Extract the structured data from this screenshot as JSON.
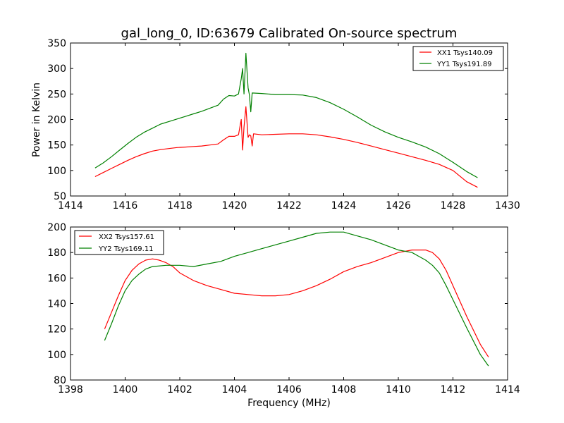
{
  "figure": {
    "title": "gal_long_0, ID:63679 Calibrated On-source spectrum",
    "xlabel": "Frequency (MHz)"
  },
  "chart_data": [
    {
      "type": "line",
      "ylabel": "Power in Kelvin",
      "xlim": [
        1414,
        1430
      ],
      "ylim": [
        50,
        350
      ],
      "xticks": [
        1414,
        1416,
        1418,
        1420,
        1422,
        1424,
        1426,
        1428,
        1430
      ],
      "yticks": [
        50,
        100,
        150,
        200,
        250,
        300,
        350
      ],
      "legend_position": "top-right",
      "series": [
        {
          "name": "XX1 Tsys140.09",
          "color": "#ff0000",
          "points": [
            [
              1414.9,
              88
            ],
            [
              1415.2,
              96
            ],
            [
              1415.5,
              104
            ],
            [
              1415.8,
              112
            ],
            [
              1416.1,
              120
            ],
            [
              1416.4,
              127
            ],
            [
              1416.7,
              133
            ],
            [
              1417.0,
              138
            ],
            [
              1417.3,
              141
            ],
            [
              1417.6,
              143
            ],
            [
              1417.9,
              145
            ],
            [
              1418.2,
              146
            ],
            [
              1418.5,
              147
            ],
            [
              1418.8,
              148
            ],
            [
              1419.1,
              150
            ],
            [
              1419.4,
              152
            ],
            [
              1419.6,
              160
            ],
            [
              1419.8,
              167
            ],
            [
              1420.0,
              167
            ],
            [
              1420.15,
              170
            ],
            [
              1420.25,
              200
            ],
            [
              1420.3,
              140
            ],
            [
              1420.35,
              185
            ],
            [
              1420.42,
              225
            ],
            [
              1420.5,
              165
            ],
            [
              1420.55,
              170
            ],
            [
              1420.6,
              168
            ],
            [
              1420.65,
              148
            ],
            [
              1420.7,
              172
            ],
            [
              1421.0,
              170
            ],
            [
              1421.5,
              171
            ],
            [
              1422.0,
              172
            ],
            [
              1422.5,
              172
            ],
            [
              1423.0,
              170
            ],
            [
              1423.5,
              166
            ],
            [
              1424.0,
              161
            ],
            [
              1424.5,
              155
            ],
            [
              1425.0,
              148
            ],
            [
              1425.5,
              141
            ],
            [
              1426.0,
              134
            ],
            [
              1426.5,
              127
            ],
            [
              1427.0,
              120
            ],
            [
              1427.5,
              112
            ],
            [
              1428.0,
              100
            ],
            [
              1428.5,
              78
            ],
            [
              1428.9,
              67
            ]
          ]
        },
        {
          "name": "YY1 Tsys191.89",
          "color": "#008000",
          "points": [
            [
              1414.9,
              105
            ],
            [
              1415.2,
              115
            ],
            [
              1415.5,
              127
            ],
            [
              1415.8,
              140
            ],
            [
              1416.1,
              153
            ],
            [
              1416.4,
              165
            ],
            [
              1416.7,
              175
            ],
            [
              1417.0,
              183
            ],
            [
              1417.3,
              191
            ],
            [
              1417.6,
              196
            ],
            [
              1417.9,
              201
            ],
            [
              1418.2,
              206
            ],
            [
              1418.5,
              211
            ],
            [
              1418.8,
              216
            ],
            [
              1419.1,
              222
            ],
            [
              1419.4,
              228
            ],
            [
              1419.6,
              240
            ],
            [
              1419.8,
              247
            ],
            [
              1420.0,
              246
            ],
            [
              1420.15,
              250
            ],
            [
              1420.25,
              280
            ],
            [
              1420.3,
              300
            ],
            [
              1420.35,
              250
            ],
            [
              1420.42,
              330
            ],
            [
              1420.5,
              262
            ],
            [
              1420.55,
              248
            ],
            [
              1420.6,
              215
            ],
            [
              1420.65,
              252
            ],
            [
              1421.0,
              251
            ],
            [
              1421.5,
              249
            ],
            [
              1422.0,
              249
            ],
            [
              1422.5,
              248
            ],
            [
              1423.0,
              243
            ],
            [
              1423.5,
              233
            ],
            [
              1424.0,
              220
            ],
            [
              1424.5,
              205
            ],
            [
              1425.0,
              189
            ],
            [
              1425.5,
              176
            ],
            [
              1426.0,
              165
            ],
            [
              1426.5,
              156
            ],
            [
              1427.0,
              146
            ],
            [
              1427.5,
              133
            ],
            [
              1428.0,
              116
            ],
            [
              1428.5,
              98
            ],
            [
              1428.9,
              86
            ]
          ]
        }
      ]
    },
    {
      "type": "line",
      "ylabel": "",
      "xlim": [
        1398,
        1414
      ],
      "ylim": [
        80,
        200
      ],
      "xticks": [
        1398,
        1400,
        1402,
        1404,
        1406,
        1408,
        1410,
        1412,
        1414
      ],
      "yticks": [
        80,
        100,
        120,
        140,
        160,
        180,
        200
      ],
      "legend_position": "top-left",
      "series": [
        {
          "name": "XX2 Tsys157.61",
          "color": "#ff0000",
          "points": [
            [
              1399.25,
              120
            ],
            [
              1399.5,
              133
            ],
            [
              1399.75,
              146
            ],
            [
              1400.0,
              158
            ],
            [
              1400.25,
              166
            ],
            [
              1400.5,
              171
            ],
            [
              1400.75,
              174
            ],
            [
              1401.0,
              175
            ],
            [
              1401.25,
              174
            ],
            [
              1401.5,
              172
            ],
            [
              1401.75,
              169
            ],
            [
              1402.0,
              164
            ],
            [
              1402.5,
              158
            ],
            [
              1403.0,
              154
            ],
            [
              1403.5,
              151
            ],
            [
              1404.0,
              148
            ],
            [
              1404.5,
              147
            ],
            [
              1405.0,
              146
            ],
            [
              1405.5,
              146
            ],
            [
              1406.0,
              147
            ],
            [
              1406.5,
              150
            ],
            [
              1407.0,
              154
            ],
            [
              1407.5,
              159
            ],
            [
              1408.0,
              165
            ],
            [
              1408.5,
              169
            ],
            [
              1409.0,
              172
            ],
            [
              1409.5,
              176
            ],
            [
              1410.0,
              180
            ],
            [
              1410.5,
              182
            ],
            [
              1411.0,
              182
            ],
            [
              1411.25,
              180
            ],
            [
              1411.5,
              175
            ],
            [
              1411.75,
              166
            ],
            [
              1412.0,
              154
            ],
            [
              1412.5,
              130
            ],
            [
              1413.0,
              108
            ],
            [
              1413.3,
              98
            ]
          ]
        },
        {
          "name": "YY2 Tsys169.11",
          "color": "#008000",
          "points": [
            [
              1399.25,
              111
            ],
            [
              1399.5,
              124
            ],
            [
              1399.75,
              138
            ],
            [
              1400.0,
              150
            ],
            [
              1400.25,
              158
            ],
            [
              1400.5,
              163
            ],
            [
              1400.75,
              167
            ],
            [
              1401.0,
              169
            ],
            [
              1401.5,
              170
            ],
            [
              1402.0,
              170
            ],
            [
              1402.5,
              169
            ],
            [
              1403.0,
              171
            ],
            [
              1403.5,
              173
            ],
            [
              1404.0,
              177
            ],
            [
              1404.5,
              180
            ],
            [
              1405.0,
              183
            ],
            [
              1405.5,
              186
            ],
            [
              1406.0,
              189
            ],
            [
              1406.5,
              192
            ],
            [
              1407.0,
              195
            ],
            [
              1407.5,
              196
            ],
            [
              1408.0,
              196
            ],
            [
              1408.5,
              193
            ],
            [
              1409.0,
              190
            ],
            [
              1409.5,
              186
            ],
            [
              1410.0,
              182
            ],
            [
              1410.5,
              180
            ],
            [
              1410.75,
              177
            ],
            [
              1411.0,
              174
            ],
            [
              1411.25,
              170
            ],
            [
              1411.5,
              164
            ],
            [
              1411.75,
              154
            ],
            [
              1412.0,
              143
            ],
            [
              1412.5,
              121
            ],
            [
              1413.0,
              100
            ],
            [
              1413.3,
              91
            ]
          ]
        }
      ]
    }
  ]
}
